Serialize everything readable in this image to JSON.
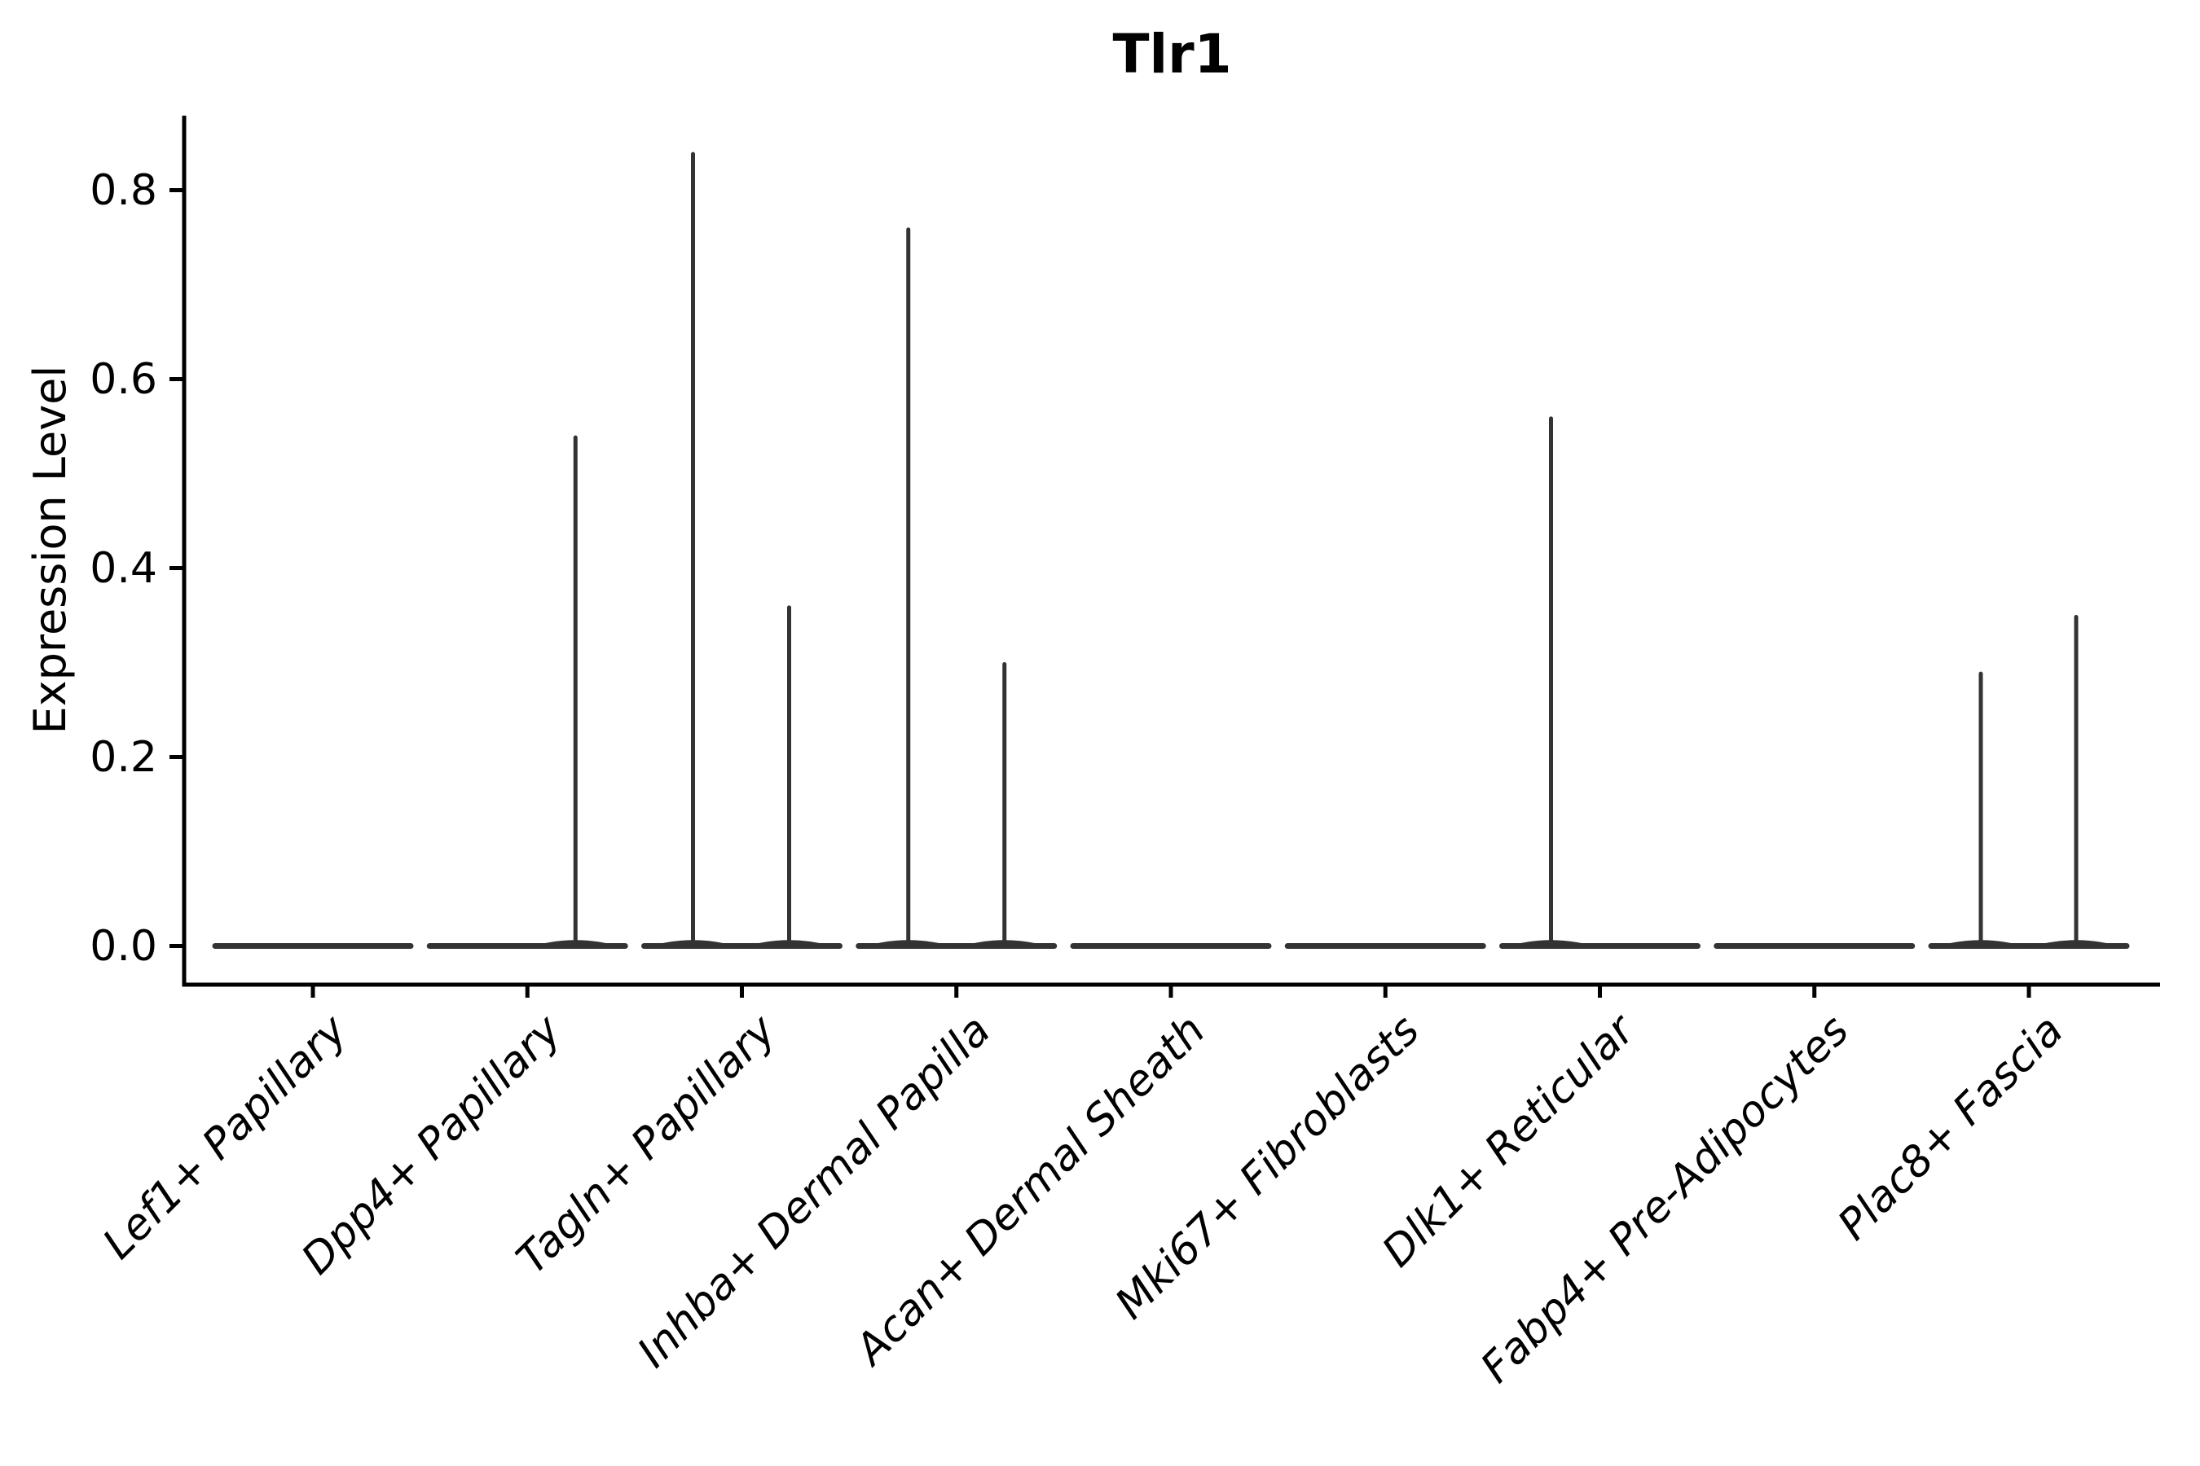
{
  "title": "Tlr1",
  "ylabel": "Expression Level",
  "chart_data": {
    "type": "violin",
    "title": "Tlr1",
    "xlabel": "",
    "ylabel": "Expression Level",
    "ylim": [
      -0.04,
      0.88
    ],
    "yticks": [
      "0.0",
      "0.2",
      "0.4",
      "0.6",
      "0.8"
    ],
    "grid": false,
    "legend": "none",
    "violin_color": "#333333",
    "axis_color": "#000000",
    "categories": [
      "Lef1+ Papillary",
      "Dpp4+ Papillary",
      "Tagln+ Papillary",
      "Inhba+ Dermal Papilla",
      "Acan+ Dermal Sheath",
      "Mki67+ Fibroblasts",
      "Dlk1+ Reticular",
      "Fabp4+ Pre-Adipocytes",
      "Plac8+ Fascia"
    ],
    "violins": [
      {
        "category": "Lef1+ Papillary",
        "max_expression": 0.0,
        "spikes": []
      },
      {
        "category": "Dpp4+ Papillary",
        "max_expression": 0.54,
        "spikes": [
          {
            "dx": 59,
            "max": 0.54
          }
        ]
      },
      {
        "category": "Tagln+ Papillary",
        "max_expression": 0.84,
        "spikes": [
          {
            "dx": -60,
            "max": 0.84
          },
          {
            "dx": 58,
            "max": 0.36
          }
        ]
      },
      {
        "category": "Inhba+ Dermal Papilla",
        "max_expression": 0.76,
        "spikes": [
          {
            "dx": -59,
            "max": 0.76
          },
          {
            "dx": 59,
            "max": 0.3
          }
        ]
      },
      {
        "category": "Acan+ Dermal Sheath",
        "max_expression": 0.0,
        "spikes": []
      },
      {
        "category": "Mki67+ Fibroblasts",
        "max_expression": 0.0,
        "spikes": []
      },
      {
        "category": "Dlk1+ Reticular",
        "max_expression": 0.56,
        "spikes": [
          {
            "dx": -60,
            "max": 0.56
          }
        ]
      },
      {
        "category": "Fabp4+ Pre-Adipocytes",
        "max_expression": 0.0,
        "spikes": []
      },
      {
        "category": "Plac8+ Fascia",
        "max_expression": 0.35,
        "spikes": [
          {
            "dx": -59,
            "max": 0.29
          },
          {
            "dx": 58,
            "max": 0.35
          }
        ]
      }
    ]
  }
}
